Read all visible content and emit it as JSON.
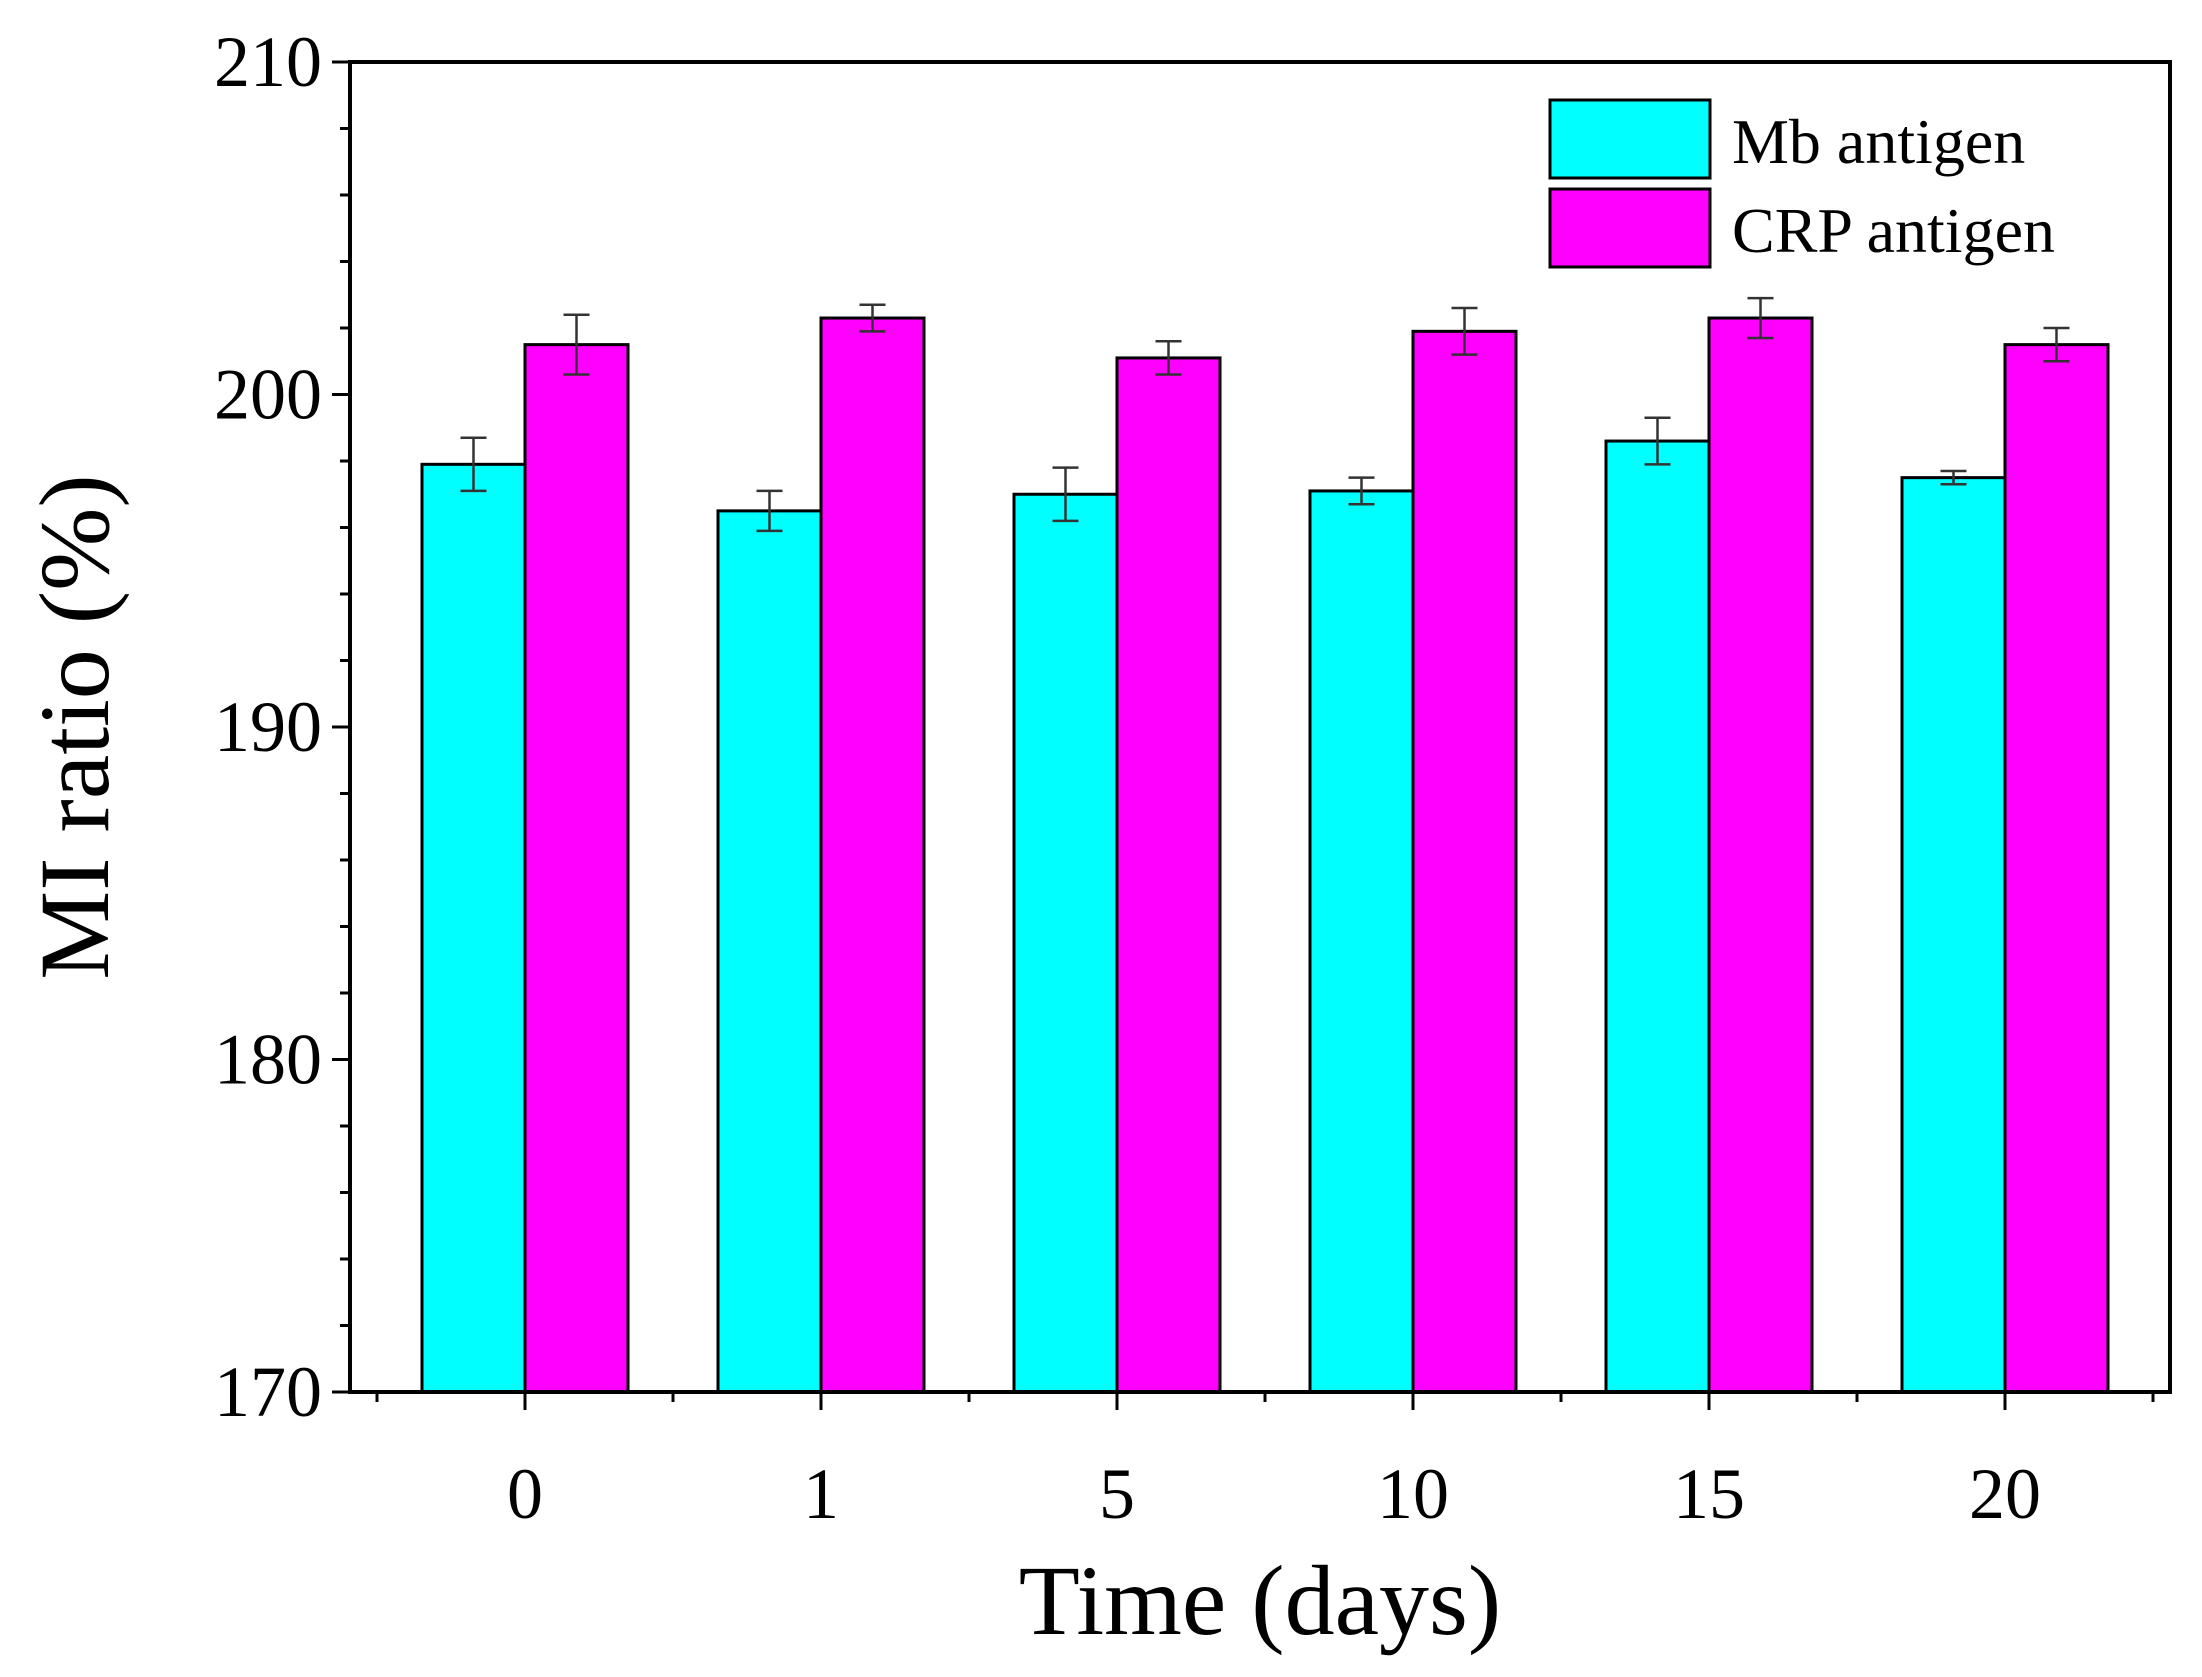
{
  "chart_data": {
    "type": "bar",
    "title": "",
    "xlabel": "Time (days)",
    "ylabel": "MI ratio (%)",
    "categories": [
      "0",
      "1",
      "5",
      "10",
      "15",
      "20"
    ],
    "ylim": [
      170,
      210
    ],
    "yticks": [
      "170",
      "180",
      "190",
      "200",
      "210"
    ],
    "series": [
      {
        "name": "Mb antigen",
        "color": "#00ffff",
        "values": [
          197.9,
          196.5,
          197.0,
          197.1,
          198.6,
          197.5
        ],
        "errors": [
          0.8,
          0.6,
          0.8,
          0.4,
          0.7,
          0.2
        ]
      },
      {
        "name": "CRP antigen",
        "color": "#ff00ff",
        "values": [
          201.5,
          202.3,
          201.1,
          201.9,
          202.3,
          201.5
        ],
        "errors": [
          0.9,
          0.4,
          0.5,
          0.7,
          0.6,
          0.5
        ]
      }
    ],
    "legend_position": "top-right",
    "grid": false
  }
}
